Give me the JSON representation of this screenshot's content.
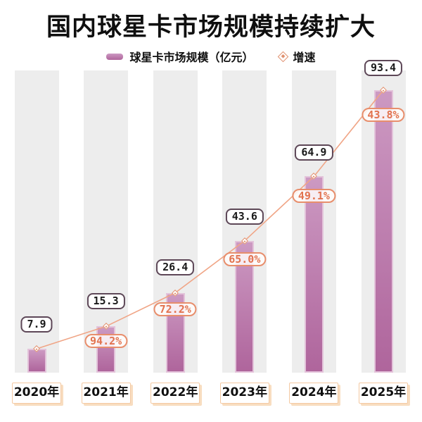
{
  "title": "国内球星卡市场规模持续扩大",
  "legend": {
    "market_label": "球星卡市场规模（亿元）",
    "growth_label": "增速"
  },
  "chart_data": {
    "type": "bar",
    "title": "国内球星卡市场规模持续扩大",
    "categories": [
      "2020年",
      "2021年",
      "2022年",
      "2023年",
      "2024年",
      "2025年"
    ],
    "series": [
      {
        "name": "球星卡市场规模（亿元）",
        "type": "bar",
        "unit": "亿元",
        "values": [
          7.9,
          15.3,
          26.4,
          43.6,
          64.9,
          93.4
        ],
        "labels": [
          "7.9",
          "15.3",
          "26.4",
          "43.6",
          "64.9",
          "93.4"
        ]
      },
      {
        "name": "增速",
        "type": "line",
        "unit": "%",
        "values": [
          null,
          94.2,
          72.2,
          65.0,
          49.1,
          43.8
        ],
        "labels": [
          null,
          "94.2%",
          "72.2%",
          "65.0%",
          "49.1%",
          "43.8%"
        ]
      }
    ],
    "xlabel": "",
    "ylabel": "",
    "ylim": [
      0,
      100
    ],
    "grid": false,
    "legend_position": "top"
  },
  "colors": {
    "bar_top": "#cc99c2",
    "bar_bottom": "#af659c",
    "bar_edge": "#e3c3da",
    "track": "#ededed",
    "line": "#f0a586",
    "diamond": "#e0906e",
    "value_box_border": "#5d4757",
    "value_text": "#1a1a1a",
    "pct_border": "#e88e6c",
    "pct_text": "#e2734f",
    "x_box_border": "#f4c9a2",
    "x_box_shadow": "#f8ddc0",
    "title_ink": "#0f0f0f"
  }
}
